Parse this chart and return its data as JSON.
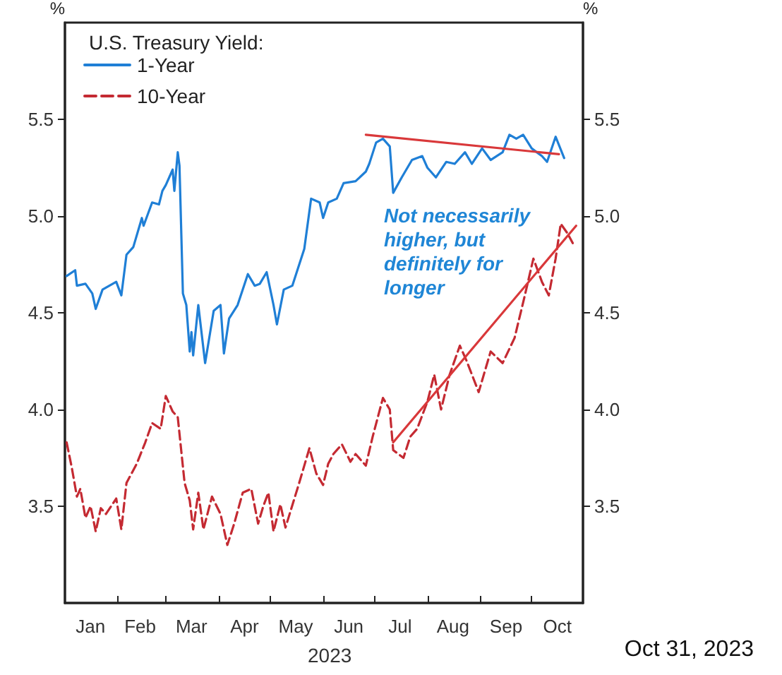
{
  "chart_data": {
    "type": "line",
    "legend_title": "U.S. Treasury Yield:",
    "xlabel": "2023",
    "ylabel": "%",
    "y2label": "%",
    "annotations": [
      "Not necessarily higher, but definitely for longer",
      "Oct 31, 2023"
    ],
    "xlim": [
      "2023-01-01",
      "2023-10-31"
    ],
    "xticks": [
      {
        "value": "2023-02-01",
        "label": null
      },
      {
        "value": "2023-03-01",
        "label": null
      },
      {
        "value": "2023-04-01",
        "label": null
      },
      {
        "value": "2023-05-01",
        "label": null
      },
      {
        "value": "2023-06-01",
        "label": null
      },
      {
        "value": "2023-07-01",
        "label": null
      },
      {
        "value": "2023-08-01",
        "label": null
      },
      {
        "value": "2023-09-01",
        "label": null
      },
      {
        "value": "2023-10-01",
        "label": null
      },
      {
        "value": "2023-01-16",
        "label": "Jan"
      },
      {
        "value": "2023-02-14",
        "label": "Feb"
      },
      {
        "value": "2023-03-16",
        "label": "Mar"
      },
      {
        "value": "2023-04-16",
        "label": "Apr"
      },
      {
        "value": "2023-05-16",
        "label": "May"
      },
      {
        "value": "2023-06-16",
        "label": "Jun"
      },
      {
        "value": "2023-07-16",
        "label": "Jul"
      },
      {
        "value": "2023-08-16",
        "label": "Aug"
      },
      {
        "value": "2023-09-16",
        "label": "Sep"
      },
      {
        "value": "2023-10-16",
        "label": "Oct"
      }
    ],
    "ylim": [
      3.0,
      6.0
    ],
    "yticks": [
      {
        "value": 3.5,
        "label": "3.5"
      },
      {
        "value": 4,
        "label": "4.0"
      },
      {
        "value": 4.5,
        "label": "4.5"
      },
      {
        "value": 5,
        "label": "5.0"
      },
      {
        "value": 5.5,
        "label": "5.5"
      }
    ],
    "y2lim": [
      3.0,
      6.0
    ],
    "y2ticks": [
      {
        "value": 3.5,
        "label": "3.5"
      },
      {
        "value": 4,
        "label": "4.0"
      },
      {
        "value": 4.5,
        "label": "4.5"
      },
      {
        "value": 5,
        "label": "5.0"
      },
      {
        "value": 5.5,
        "label": "5.5"
      }
    ],
    "grid": false,
    "legend": "top left",
    "marker": "none",
    "series": [
      {
        "name": "1-Year",
        "color": "#1f7fd6",
        "line_style": "solid",
        "x": [
          "2023-01-02",
          "2023-01-07",
          "2023-01-08",
          "2023-01-13",
          "2023-01-17",
          "2023-01-19",
          "2023-01-23",
          "2023-01-31",
          "2023-02-03",
          "2023-02-06",
          "2023-02-10",
          "2023-02-15",
          "2023-02-16",
          "2023-02-21",
          "2023-02-25",
          "2023-02-27",
          "2023-03-01",
          "2023-03-05",
          "2023-03-06",
          "2023-03-08",
          "2023-03-09",
          "2023-03-11",
          "2023-03-13",
          "2023-03-15",
          "2023-03-16",
          "2023-03-17",
          "2023-03-20",
          "2023-03-24",
          "2023-03-29",
          "2023-04-02",
          "2023-04-04",
          "2023-04-07",
          "2023-04-12",
          "2023-04-18",
          "2023-04-22",
          "2023-04-25",
          "2023-04-29",
          "2023-05-03",
          "2023-05-05",
          "2023-05-09",
          "2023-05-14",
          "2023-05-21",
          "2023-05-25",
          "2023-05-30",
          "2023-06-01",
          "2023-06-04",
          "2023-06-09",
          "2023-06-13",
          "2023-06-20",
          "2023-06-26",
          "2023-06-28",
          "2023-07-02",
          "2023-07-06",
          "2023-07-10",
          "2023-07-12",
          "2023-07-17",
          "2023-07-23",
          "2023-07-29",
          "2023-08-01",
          "2023-08-06",
          "2023-08-12",
          "2023-08-17",
          "2023-08-23",
          "2023-08-27",
          "2023-09-02",
          "2023-09-07",
          "2023-09-14",
          "2023-09-18",
          "2023-09-22",
          "2023-09-26",
          "2023-10-01",
          "2023-10-07",
          "2023-10-10",
          "2023-10-15",
          "2023-10-20"
        ],
        "values": [
          4.69,
          4.72,
          4.64,
          4.65,
          4.6,
          4.52,
          4.62,
          4.66,
          4.59,
          4.8,
          4.84,
          4.99,
          4.95,
          5.07,
          5.06,
          5.13,
          5.16,
          5.24,
          5.13,
          5.33,
          5.26,
          4.6,
          4.54,
          4.3,
          4.4,
          4.28,
          4.54,
          4.24,
          4.51,
          4.54,
          4.29,
          4.47,
          4.54,
          4.7,
          4.64,
          4.65,
          4.71,
          4.54,
          4.44,
          4.62,
          4.64,
          4.83,
          5.09,
          5.07,
          4.99,
          5.07,
          5.09,
          5.17,
          5.18,
          5.23,
          5.27,
          5.38,
          5.4,
          5.36,
          5.12,
          5.2,
          5.29,
          5.31,
          5.25,
          5.2,
          5.28,
          5.27,
          5.33,
          5.27,
          5.35,
          5.29,
          5.33,
          5.42,
          5.4,
          5.42,
          5.35,
          5.31,
          5.28,
          5.41,
          5.3
        ]
      },
      {
        "name": "10-Year",
        "color": "#c42a32",
        "line_style": "dashed",
        "x": [
          "2023-01-02",
          "2023-01-05",
          "2023-01-08",
          "2023-01-10",
          "2023-01-13",
          "2023-01-16",
          "2023-01-19",
          "2023-01-22",
          "2023-01-25",
          "2023-01-31",
          "2023-02-03",
          "2023-02-06",
          "2023-02-12",
          "2023-02-17",
          "2023-02-21",
          "2023-02-26",
          "2023-03-01",
          "2023-03-05",
          "2023-03-08",
          "2023-03-12",
          "2023-03-15",
          "2023-03-17",
          "2023-03-20",
          "2023-03-23",
          "2023-03-28",
          "2023-04-02",
          "2023-04-06",
          "2023-04-10",
          "2023-04-15",
          "2023-04-20",
          "2023-04-24",
          "2023-04-27",
          "2023-04-30",
          "2023-05-03",
          "2023-05-07",
          "2023-05-10",
          "2023-05-18",
          "2023-05-24",
          "2023-05-28",
          "2023-06-01",
          "2023-06-04",
          "2023-06-07",
          "2023-06-12",
          "2023-06-17",
          "2023-06-20",
          "2023-06-26",
          "2023-06-30",
          "2023-07-06",
          "2023-07-10",
          "2023-07-12",
          "2023-07-18",
          "2023-07-22",
          "2023-07-26",
          "2023-08-01",
          "2023-08-05",
          "2023-08-09",
          "2023-08-14",
          "2023-08-20",
          "2023-08-24",
          "2023-08-31",
          "2023-09-07",
          "2023-09-14",
          "2023-09-21",
          "2023-09-27",
          "2023-10-02",
          "2023-10-07",
          "2023-10-11",
          "2023-10-15",
          "2023-10-18",
          "2023-10-22",
          "2023-10-25"
        ],
        "values": [
          3.83,
          3.7,
          3.55,
          3.59,
          3.44,
          3.5,
          3.37,
          3.49,
          3.46,
          3.54,
          3.38,
          3.62,
          3.72,
          3.83,
          3.93,
          3.9,
          4.07,
          3.99,
          3.96,
          3.62,
          3.53,
          3.38,
          3.57,
          3.38,
          3.55,
          3.46,
          3.3,
          3.41,
          3.57,
          3.59,
          3.41,
          3.5,
          3.57,
          3.37,
          3.51,
          3.39,
          3.62,
          3.8,
          3.67,
          3.61,
          3.72,
          3.77,
          3.82,
          3.73,
          3.77,
          3.71,
          3.86,
          4.06,
          4.0,
          3.79,
          3.75,
          3.86,
          3.9,
          4.04,
          4.18,
          4.0,
          4.18,
          4.33,
          4.25,
          4.09,
          4.3,
          4.24,
          4.37,
          4.59,
          4.78,
          4.66,
          4.59,
          4.78,
          4.96,
          4.91,
          4.86
        ]
      },
      {
        "color": "#d9383a",
        "line_style": "solid",
        "x": [
          "2023-06-26",
          "2023-10-17"
        ],
        "values": [
          5.42,
          5.32
        ]
      },
      {
        "color": "#d9383a",
        "line_style": "solid",
        "x": [
          "2023-07-12",
          "2023-10-27"
        ],
        "values": [
          3.83,
          4.95
        ]
      }
    ]
  }
}
